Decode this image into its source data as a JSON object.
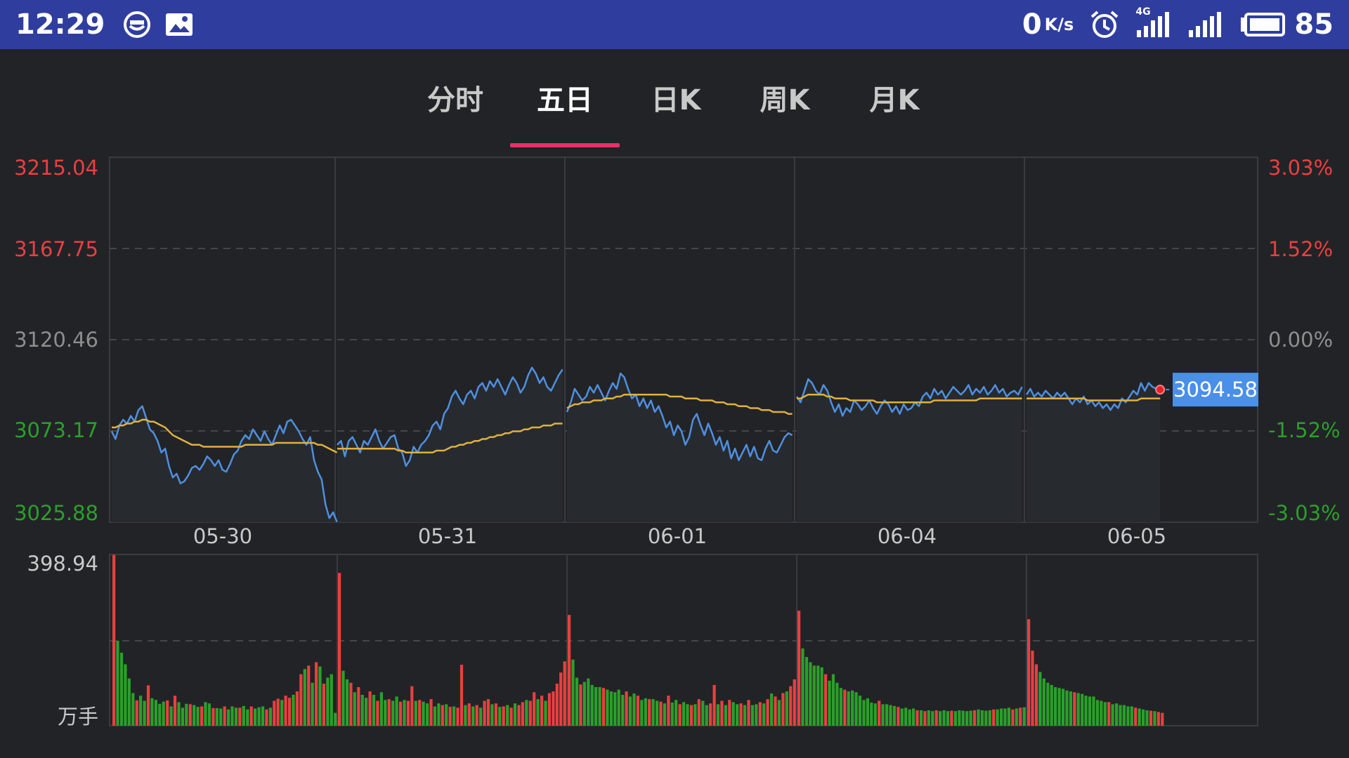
{
  "status_bar": {
    "time": "12:29",
    "net_speed": "0",
    "net_unit": "K/s",
    "network_label": "4G",
    "battery": "85",
    "icons": [
      "face-icon",
      "image-icon",
      "alarm-icon",
      "signal-4g-icon",
      "signal-icon",
      "battery-icon"
    ]
  },
  "tabs": [
    {
      "label": "分时",
      "active": false
    },
    {
      "label": "五日",
      "active": true
    },
    {
      "label": "日K",
      "active": false
    },
    {
      "label": "周K",
      "active": false
    },
    {
      "label": "月K",
      "active": false
    }
  ],
  "colors": {
    "up": "#e84040",
    "down": "#2aa02a",
    "price_line": "#4f8fe0",
    "avg_line": "#e0b040",
    "tab_accent": "#e8306a",
    "neutral": "#8e8e8e",
    "badge": "#4a8fe8"
  },
  "chart_data": {
    "type": "line",
    "days": [
      "05-30",
      "05-31",
      "06-01",
      "06-04",
      "06-05"
    ],
    "y_ticks": [
      "3215.04",
      "3167.75",
      "3120.46",
      "3073.17",
      "3025.88"
    ],
    "y_range": [
      3025.88,
      3215.04
    ],
    "base_price": 3120.46,
    "pct_ticks": [
      "3.03%",
      "1.52%",
      "0.00%",
      "-1.52%",
      "-3.03%"
    ],
    "current_price": "3094.58",
    "price_series": [
      [
        3073,
        3069,
        3076,
        3079,
        3077,
        3081,
        3078,
        3084,
        3086,
        3080,
        3074,
        3072,
        3068,
        3062,
        3064,
        3055,
        3049,
        3051,
        3046,
        3047,
        3050,
        3054,
        3055,
        3053,
        3056,
        3060,
        3058,
        3055,
        3058,
        3053,
        3052,
        3056,
        3061,
        3063,
        3068,
        3071,
        3069,
        3074,
        3071,
        3068,
        3073,
        3069,
        3066,
        3071,
        3076,
        3072,
        3078,
        3079,
        3076,
        3073,
        3069,
        3066,
        3070,
        3058,
        3052,
        3048,
        3035,
        3028,
        3031,
        3026
      ],
      [
        3066,
        3068,
        3060,
        3068,
        3070,
        3066,
        3062,
        3068,
        3066,
        3070,
        3074,
        3068,
        3064,
        3067,
        3070,
        3071,
        3064,
        3062,
        3055,
        3058,
        3065,
        3062,
        3066,
        3068,
        3071,
        3076,
        3078,
        3074,
        3082,
        3085,
        3091,
        3094,
        3090,
        3087,
        3092,
        3094,
        3090,
        3096,
        3098,
        3094,
        3099,
        3096,
        3100,
        3096,
        3092,
        3097,
        3101,
        3098,
        3093,
        3096,
        3102,
        3106,
        3103,
        3098,
        3101,
        3096,
        3094,
        3098,
        3102,
        3105
      ],
      [
        3083,
        3088,
        3095,
        3092,
        3089,
        3091,
        3096,
        3093,
        3097,
        3093,
        3089,
        3094,
        3098,
        3095,
        3103,
        3101,
        3095,
        3090,
        3092,
        3086,
        3090,
        3085,
        3089,
        3083,
        3086,
        3081,
        3075,
        3078,
        3071,
        3076,
        3073,
        3066,
        3070,
        3079,
        3082,
        3076,
        3071,
        3077,
        3072,
        3066,
        3070,
        3063,
        3068,
        3059,
        3064,
        3058,
        3062,
        3066,
        3060,
        3065,
        3059,
        3058,
        3064,
        3068,
        3063,
        3062,
        3066,
        3070,
        3072,
        3071
      ],
      [
        3091,
        3088,
        3094,
        3100,
        3098,
        3094,
        3092,
        3097,
        3094,
        3088,
        3083,
        3087,
        3081,
        3085,
        3083,
        3089,
        3087,
        3084,
        3086,
        3089,
        3085,
        3082,
        3086,
        3089,
        3087,
        3083,
        3086,
        3082,
        3087,
        3084,
        3085,
        3088,
        3086,
        3091,
        3093,
        3090,
        3095,
        3092,
        3094,
        3090,
        3093,
        3096,
        3094,
        3092,
        3094,
        3097,
        3092,
        3095,
        3093,
        3096,
        3092,
        3094,
        3097,
        3093,
        3095,
        3091,
        3093,
        3094,
        3092,
        3096
      ],
      [
        3092,
        3095,
        3091,
        3093,
        3091,
        3094,
        3092,
        3090,
        3093,
        3091,
        3093,
        3090,
        3087,
        3090,
        3088,
        3091,
        3087,
        3089,
        3086,
        3088,
        3085,
        3087,
        3084,
        3087,
        3085,
        3090,
        3088,
        3091,
        3094,
        3092,
        3098,
        3094,
        3098,
        3096,
        3095,
        3094
      ]
    ],
    "avg_series": [
      [
        3075,
        3075,
        3076,
        3076,
        3077,
        3077,
        3078,
        3078,
        3079,
        3079,
        3078,
        3078,
        3077,
        3076,
        3075,
        3073,
        3071,
        3070,
        3069,
        3068,
        3067,
        3066,
        3066,
        3066,
        3065,
        3065,
        3065,
        3065,
        3065,
        3065,
        3065,
        3065,
        3065,
        3065,
        3065,
        3066,
        3066,
        3066,
        3066,
        3066,
        3066,
        3066,
        3066,
        3067,
        3067,
        3067,
        3067,
        3067,
        3067,
        3067,
        3067,
        3067,
        3067,
        3067,
        3066,
        3066,
        3065,
        3064,
        3063,
        3062
      ],
      [
        3064,
        3064,
        3064,
        3064,
        3064,
        3064,
        3064,
        3064,
        3064,
        3064,
        3064,
        3064,
        3064,
        3064,
        3064,
        3064,
        3063,
        3063,
        3062,
        3062,
        3062,
        3062,
        3062,
        3062,
        3062,
        3062,
        3063,
        3063,
        3063,
        3064,
        3065,
        3065,
        3066,
        3066,
        3067,
        3067,
        3068,
        3068,
        3069,
        3069,
        3070,
        3070,
        3071,
        3071,
        3072,
        3072,
        3073,
        3073,
        3073,
        3074,
        3074,
        3075,
        3075,
        3075,
        3076,
        3076,
        3076,
        3077,
        3077,
        3077
      ],
      [
        3085,
        3086,
        3087,
        3087,
        3088,
        3088,
        3088,
        3089,
        3089,
        3089,
        3090,
        3090,
        3090,
        3091,
        3091,
        3092,
        3092,
        3092,
        3092,
        3092,
        3092,
        3092,
        3092,
        3092,
        3092,
        3092,
        3092,
        3091,
        3091,
        3091,
        3091,
        3090,
        3090,
        3090,
        3090,
        3089,
        3089,
        3089,
        3089,
        3088,
        3088,
        3088,
        3087,
        3087,
        3087,
        3086,
        3086,
        3086,
        3085,
        3085,
        3085,
        3084,
        3084,
        3084,
        3083,
        3083,
        3083,
        3083,
        3082,
        3082
      ],
      [
        3090,
        3090,
        3091,
        3092,
        3092,
        3092,
        3092,
        3092,
        3091,
        3091,
        3090,
        3090,
        3090,
        3090,
        3089,
        3089,
        3089,
        3089,
        3089,
        3089,
        3089,
        3088,
        3088,
        3088,
        3088,
        3088,
        3088,
        3088,
        3088,
        3088,
        3088,
        3088,
        3088,
        3088,
        3088,
        3088,
        3089,
        3089,
        3089,
        3089,
        3089,
        3089,
        3089,
        3089,
        3089,
        3089,
        3089,
        3089,
        3090,
        3090,
        3090,
        3090,
        3090,
        3090,
        3090,
        3090,
        3090,
        3090,
        3090,
        3090
      ],
      [
        3090,
        3090,
        3090,
        3090,
        3090,
        3090,
        3090,
        3090,
        3090,
        3090,
        3090,
        3090,
        3090,
        3090,
        3090,
        3090,
        3089,
        3089,
        3089,
        3089,
        3089,
        3089,
        3089,
        3089,
        3089,
        3089,
        3089,
        3089,
        3089,
        3089,
        3090,
        3090,
        3090,
        3090,
        3090,
        3090
      ]
    ],
    "volume": {
      "max_label": "398.94",
      "unit_label": "万手",
      "max": 398.94,
      "days": [
        [
          398,
          198,
          170,
          143,
          110,
          76,
          59,
          70,
          58,
          94,
          64,
          60,
          51,
          56,
          59,
          45,
          70,
          55,
          42,
          51,
          50,
          48,
          44,
          45,
          55,
          52,
          41,
          41,
          40,
          45,
          38,
          45,
          42,
          42,
          46,
          38,
          45,
          40,
          43,
          45,
          38,
          42,
          58,
          63,
          60,
          70,
          65,
          72,
          80,
          120,
          132,
          140,
          100,
          148,
          138,
          98,
          112,
          120,
          30,
          12
        ],
        [
          356,
          128,
          108,
          100,
          78,
          90,
          72,
          65,
          80,
          72,
          58,
          78,
          60,
          62,
          58,
          68,
          56,
          60,
          58,
          92,
          58,
          60,
          56,
          52,
          62,
          45,
          52,
          48,
          50,
          44,
          45,
          42,
          142,
          48,
          52,
          45,
          48,
          42,
          58,
          62,
          50,
          52,
          44,
          45,
          48,
          42,
          52,
          48,
          55,
          60,
          58,
          78,
          62,
          70,
          58,
          76,
          80,
          98,
          124,
          150
        ],
        [
          258,
          154,
          112,
          96,
          102,
          110,
          95,
          90,
          90,
          88,
          84,
          80,
          78,
          84,
          72,
          80,
          68,
          75,
          70,
          60,
          64,
          62,
          62,
          58,
          56,
          52,
          70,
          54,
          60,
          50,
          55,
          50,
          48,
          50,
          62,
          58,
          48,
          52,
          95,
          50,
          58,
          48,
          60,
          55,
          50,
          52,
          48,
          60,
          48,
          50,
          55,
          52,
          62,
          75,
          68,
          60,
          76,
          80,
          92,
          108
        ],
        [
          268,
          180,
          160,
          148,
          140,
          140,
          136,
          120,
          105,
          120,
          100,
          88,
          84,
          80,
          82,
          78,
          70,
          60,
          64,
          54,
          52,
          58,
          50,
          50,
          48,
          46,
          44,
          40,
          42,
          38,
          40,
          36,
          36,
          34,
          36,
          34,
          36,
          34,
          36,
          34,
          35,
          34,
          36,
          35,
          34,
          35,
          36,
          38,
          36,
          35,
          36,
          38,
          38,
          40,
          40,
          42,
          38,
          40,
          42,
          43
        ],
        [
          248,
          175,
          143,
          125,
          110,
          100,
          95,
          90,
          88,
          86,
          82,
          80,
          78,
          76,
          74,
          70,
          68,
          68,
          60,
          58,
          55,
          55,
          50,
          52,
          48,
          48,
          45,
          45,
          42,
          40,
          38,
          36,
          35,
          34,
          32,
          30
        ]
      ],
      "up_map": [
        [
          1,
          0,
          0,
          0,
          0,
          0,
          1,
          0,
          0,
          1,
          0,
          0,
          0,
          0,
          1,
          0,
          1,
          0,
          0,
          0,
          1,
          0,
          0,
          1,
          0,
          0,
          1,
          0,
          0,
          1,
          0,
          0,
          0,
          1,
          0,
          0,
          1,
          0,
          0,
          0,
          1,
          0,
          1,
          1,
          0,
          1,
          1,
          0,
          1,
          1,
          0,
          1,
          0,
          1,
          0,
          1,
          0,
          0,
          0,
          1
        ],
        [
          1,
          0,
          0,
          1,
          0,
          1,
          0,
          0,
          1,
          0,
          1,
          0,
          0,
          1,
          0,
          0,
          1,
          0,
          1,
          1,
          0,
          1,
          0,
          0,
          1,
          0,
          0,
          1,
          0,
          1,
          0,
          1,
          1,
          0,
          1,
          0,
          1,
          0,
          1,
          1,
          0,
          1,
          0,
          1,
          0,
          1,
          0,
          1,
          1,
          0,
          1,
          1,
          0,
          1,
          0,
          1,
          1,
          1,
          1,
          1
        ],
        [
          1,
          0,
          0,
          1,
          0,
          0,
          0,
          0,
          0,
          1,
          0,
          0,
          0,
          0,
          0,
          1,
          0,
          0,
          1,
          0,
          0,
          1,
          0,
          0,
          1,
          0,
          1,
          0,
          0,
          1,
          0,
          0,
          1,
          0,
          1,
          0,
          0,
          1,
          1,
          0,
          1,
          0,
          1,
          0,
          0,
          1,
          0,
          1,
          0,
          0,
          1,
          0,
          1,
          0,
          1,
          0,
          1,
          0,
          1,
          1
        ],
        [
          1,
          0,
          0,
          0,
          0,
          0,
          0,
          1,
          0,
          0,
          0,
          0,
          1,
          0,
          0,
          0,
          0,
          0,
          0,
          0,
          0,
          1,
          0,
          0,
          0,
          0,
          1,
          0,
          0,
          0,
          0,
          1,
          0,
          1,
          0,
          0,
          1,
          0,
          0,
          0,
          1,
          0,
          0,
          0,
          0,
          0,
          1,
          0,
          0,
          0,
          0,
          1,
          0,
          0,
          0,
          0,
          1,
          0,
          1,
          0
        ],
        [
          1,
          1,
          1,
          0,
          0,
          0,
          0,
          0,
          0,
          0,
          0,
          0,
          1,
          0,
          0,
          0,
          0,
          0,
          0,
          0,
          0,
          1,
          0,
          0,
          0,
          0,
          0,
          0,
          1,
          0,
          0,
          0,
          1,
          0,
          1,
          1
        ]
      ]
    },
    "grid": true
  }
}
